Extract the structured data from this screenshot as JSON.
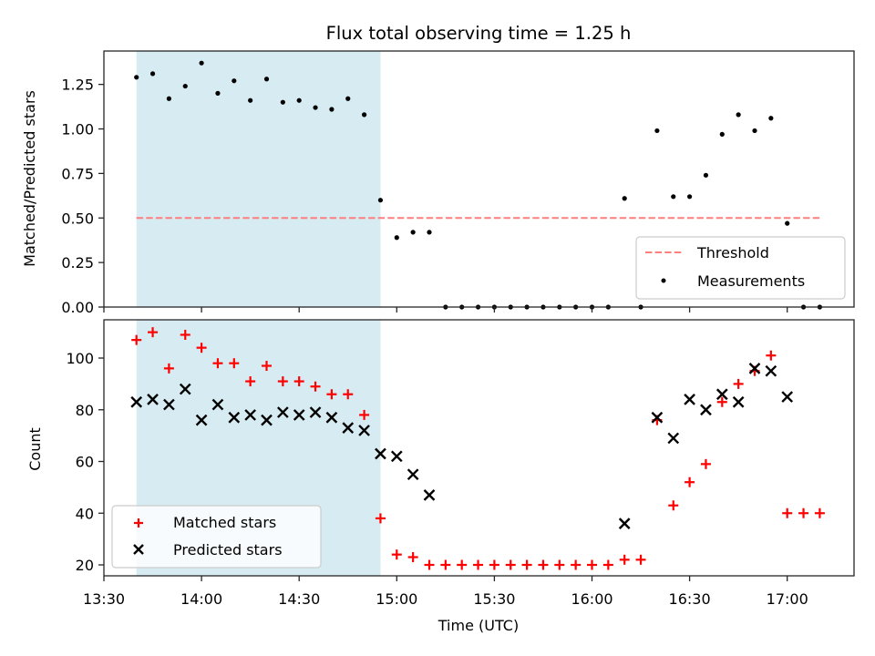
{
  "chart_data": [
    {
      "type": "scatter",
      "title": "Flux total observing time = 1.25 h",
      "xlabel": "",
      "ylabel": "Matched/Predicted stars",
      "ylim": [
        0,
        1.43
      ],
      "xlim": [
        "13:30",
        "17:21"
      ],
      "yticks": [
        "0.00",
        "0.25",
        "0.50",
        "0.75",
        "1.00",
        "1.25"
      ],
      "ytick_values": [
        0,
        0.25,
        0.5,
        0.75,
        1.0,
        1.25
      ],
      "grid": false,
      "legend_position": "lower-right",
      "shaded_region": {
        "start": "13:40",
        "end": "14:55",
        "color": "#add8e6"
      },
      "threshold": {
        "name": "Threshold",
        "value": 0.5,
        "start": "13:40",
        "end": "17:10",
        "color": "#ff7f7f",
        "style": "dashed"
      },
      "series": [
        {
          "name": "Measurements",
          "marker": "dot",
          "color": "#000000",
          "x": [
            "13:40",
            "13:45",
            "13:50",
            "13:55",
            "14:00",
            "14:05",
            "14:10",
            "14:15",
            "14:20",
            "14:25",
            "14:30",
            "14:35",
            "14:40",
            "14:45",
            "14:50",
            "14:55",
            "15:00",
            "15:05",
            "15:10",
            "15:15",
            "15:20",
            "15:25",
            "15:30",
            "15:35",
            "15:40",
            "15:45",
            "15:50",
            "15:55",
            "16:00",
            "16:05",
            "16:10",
            "16:15",
            "16:20",
            "16:25",
            "16:30",
            "16:35",
            "16:40",
            "16:45",
            "16:50",
            "16:55",
            "17:00",
            "17:05",
            "17:10"
          ],
          "values": [
            1.29,
            1.31,
            1.17,
            1.24,
            1.37,
            1.2,
            1.27,
            1.16,
            1.28,
            1.15,
            1.16,
            1.12,
            1.11,
            1.17,
            1.08,
            0.6,
            0.39,
            0.42,
            0.42,
            0,
            0,
            0,
            0,
            0,
            0,
            0,
            0,
            0,
            0,
            0,
            0.61,
            0,
            0.99,
            0.62,
            0.62,
            0.74,
            0.97,
            1.08,
            0.99,
            1.06,
            0.47,
            0,
            0
          ]
        }
      ],
      "legend": [
        "Threshold",
        "Measurements"
      ]
    },
    {
      "type": "scatter",
      "title": "",
      "xlabel": "Time (UTC)",
      "ylabel": "Count",
      "ylim": [
        15.5,
        114.5
      ],
      "xlim": [
        "13:30",
        "17:21"
      ],
      "yticks": [
        "20",
        "40",
        "60",
        "80",
        "100"
      ],
      "ytick_values": [
        20,
        40,
        60,
        80,
        100
      ],
      "xticks": [
        "13:30",
        "14:00",
        "14:30",
        "15:00",
        "15:30",
        "16:00",
        "16:30",
        "17:00"
      ],
      "grid": false,
      "legend_position": "lower-left",
      "shaded_region": {
        "start": "13:40",
        "end": "14:55",
        "color": "#add8e6"
      },
      "series": [
        {
          "name": "Matched stars",
          "marker": "+",
          "color": "#ff0000",
          "x": [
            "13:40",
            "13:45",
            "13:50",
            "13:55",
            "14:00",
            "14:05",
            "14:10",
            "14:15",
            "14:20",
            "14:25",
            "14:30",
            "14:35",
            "14:40",
            "14:45",
            "14:50",
            "14:55",
            "15:00",
            "15:05",
            "15:10",
            "15:15",
            "15:20",
            "15:25",
            "15:30",
            "15:35",
            "15:40",
            "15:45",
            "15:50",
            "15:55",
            "16:00",
            "16:05",
            "16:10",
            "16:15",
            "16:20",
            "16:25",
            "16:30",
            "16:35",
            "16:40",
            "16:45",
            "16:50",
            "16:55",
            "17:00",
            "17:05",
            "17:10"
          ],
          "values": [
            107,
            110,
            96,
            109,
            104,
            98,
            98,
            91,
            97,
            91,
            91,
            89,
            86,
            86,
            78,
            38,
            24,
            23,
            20,
            20,
            20,
            20,
            20,
            20,
            20,
            20,
            20,
            20,
            20,
            20,
            22,
            22,
            76,
            43,
            52,
            59,
            83,
            90,
            95,
            101,
            40,
            40,
            40
          ]
        },
        {
          "name": "Predicted stars",
          "marker": "x",
          "color": "#000000",
          "x": [
            "13:40",
            "13:45",
            "13:50",
            "13:55",
            "14:00",
            "14:05",
            "14:10",
            "14:15",
            "14:20",
            "14:25",
            "14:30",
            "14:35",
            "14:40",
            "14:45",
            "14:50",
            "14:55",
            "15:00",
            "15:05",
            "15:10",
            "16:10",
            "16:20",
            "16:25",
            "16:30",
            "16:35",
            "16:40",
            "16:45",
            "16:50",
            "16:55",
            "17:00"
          ],
          "values": [
            83,
            84,
            82,
            88,
            76,
            82,
            77,
            78,
            76,
            79,
            78,
            79,
            77,
            73,
            72,
            63,
            62,
            55,
            47,
            36,
            77,
            69,
            84,
            80,
            86,
            83,
            96,
            95,
            85
          ]
        }
      ],
      "legend": [
        "Matched stars",
        "Predicted stars"
      ]
    }
  ]
}
